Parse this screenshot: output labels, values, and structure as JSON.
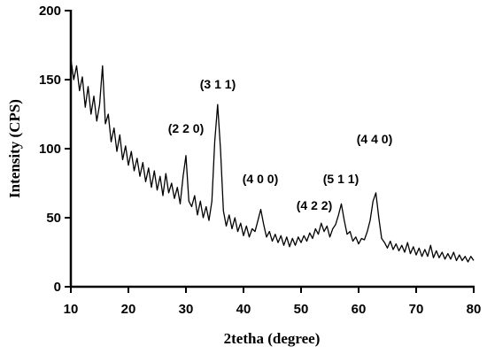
{
  "chart_data": {
    "type": "line",
    "xlabel": "2tetha (degree)",
    "ylabel": "Intensity (CPS)",
    "annotations": [
      "(2 2 0)",
      "(3 1 1)",
      "(4 0 0)",
      "(4 2 2)",
      "(5 1 1)",
      "(4 4 0)"
    ],
    "xlim": [
      10,
      80
    ],
    "ylim": [
      0,
      200
    ],
    "xticks": [
      10,
      20,
      30,
      40,
      50,
      60,
      70,
      80
    ],
    "yticks": [
      0,
      50,
      100,
      150,
      200
    ],
    "series": [
      {
        "color": "#000000",
        "x": [
          10,
          10.5,
          11,
          11.5,
          12,
          12.5,
          13,
          13.5,
          14,
          14.5,
          15,
          15.5,
          16,
          16.5,
          17,
          17.5,
          18,
          18.5,
          19,
          19.5,
          20,
          20.5,
          21,
          21.5,
          22,
          22.5,
          23,
          23.5,
          24,
          24.5,
          25,
          25.5,
          26,
          26.5,
          27,
          27.5,
          28,
          28.5,
          29,
          29.5,
          30,
          30.5,
          31,
          31.5,
          32,
          32.5,
          33,
          33.5,
          34,
          34.5,
          35,
          35.5,
          36,
          36.5,
          37,
          37.5,
          38,
          38.5,
          39,
          39.5,
          40,
          40.5,
          41,
          41.5,
          42,
          42.5,
          43,
          43.5,
          44,
          44.5,
          45,
          45.5,
          46,
          46.5,
          47,
          47.5,
          48,
          48.5,
          49,
          49.5,
          50,
          50.5,
          51,
          51.5,
          52,
          52.5,
          53,
          53.5,
          54,
          54.5,
          55,
          55.5,
          56,
          56.5,
          57,
          57.5,
          58,
          58.5,
          59,
          59.5,
          60,
          60.5,
          61,
          61.5,
          62,
          62.5,
          63,
          63.5,
          64,
          64.5,
          65,
          65.5,
          66,
          66.5,
          67,
          67.5,
          68,
          68.5,
          69,
          69.5,
          70,
          70.5,
          71,
          71.5,
          72,
          72.5,
          73,
          73.5,
          74,
          74.5,
          75,
          75.5,
          76,
          76.5,
          77,
          77.5,
          78,
          78.5,
          79,
          79.5,
          80
        ],
        "values": [
          165,
          150,
          160,
          142,
          152,
          130,
          145,
          125,
          138,
          120,
          132,
          160,
          118,
          125,
          105,
          115,
          98,
          110,
          92,
          102,
          88,
          98,
          84,
          93,
          80,
          90,
          76,
          86,
          72,
          84,
          70,
          80,
          66,
          82,
          68,
          75,
          64,
          72,
          60,
          80,
          95,
          62,
          58,
          66,
          52,
          62,
          50,
          58,
          48,
          62,
          105,
          132,
          100,
          55,
          44,
          52,
          42,
          50,
          40,
          46,
          37,
          44,
          36,
          42,
          40,
          48,
          56,
          45,
          36,
          40,
          33,
          38,
          32,
          37,
          30,
          36,
          29,
          35,
          30,
          36,
          32,
          37,
          33,
          39,
          35,
          42,
          38,
          46,
          40,
          44,
          36,
          42,
          45,
          52,
          60,
          48,
          38,
          40,
          33,
          36,
          31,
          35,
          34,
          40,
          48,
          62,
          68,
          50,
          35,
          32,
          28,
          33,
          27,
          31,
          26,
          30,
          25,
          32,
          24,
          29,
          23,
          28,
          22,
          27,
          22,
          30,
          21,
          26,
          21,
          25,
          20,
          24,
          20,
          25,
          19,
          23,
          19,
          22,
          18,
          22,
          19
        ]
      }
    ]
  }
}
